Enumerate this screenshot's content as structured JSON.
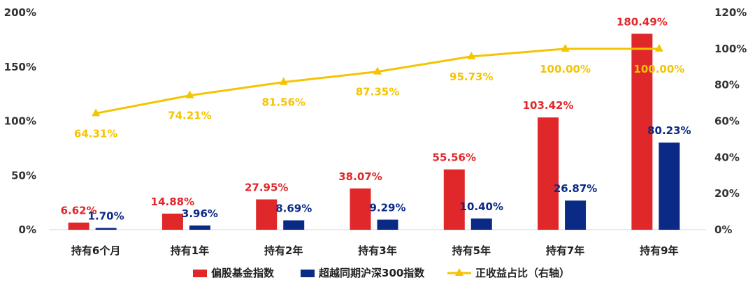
{
  "chart_data": {
    "type": "bar",
    "categories": [
      "持有6个月",
      "持有1年",
      "持有2年",
      "持有3年",
      "持有5年",
      "持有7年",
      "持有9年"
    ],
    "series": [
      {
        "name": "偏股基金指数",
        "type": "bar",
        "axis": "left",
        "color": "#e0282a",
        "values": [
          6.62,
          14.88,
          27.95,
          38.07,
          55.56,
          103.42,
          180.49
        ],
        "labels": [
          "6.62%",
          "14.88%",
          "27.95%",
          "38.07%",
          "55.56%",
          "103.42%",
          "180.49%"
        ]
      },
      {
        "name": "超越同期沪深300指数",
        "type": "bar",
        "axis": "left",
        "color": "#0b2a86",
        "values": [
          1.7,
          3.96,
          8.69,
          9.29,
          10.4,
          26.87,
          80.23
        ],
        "labels": [
          "1.70%",
          "3.96%",
          "8.69%",
          "9.29%",
          "10.40%",
          "26.87%",
          "80.23%"
        ]
      },
      {
        "name": "正收益占比（右轴）",
        "type": "line",
        "axis": "right",
        "color": "#f4c400",
        "values": [
          64.31,
          74.21,
          81.56,
          87.35,
          95.73,
          100.0,
          100.0
        ],
        "labels": [
          "64.31%",
          "74.21%",
          "81.56%",
          "87.35%",
          "95.73%",
          "100.00%",
          "100.00%"
        ]
      }
    ],
    "y_left": {
      "ylim": [
        0,
        200
      ],
      "ticks": [
        "0%",
        "50%",
        "100%",
        "150%",
        "200%"
      ]
    },
    "y_right": {
      "ylim": [
        0,
        120
      ],
      "ticks": [
        "0%",
        "20%",
        "40%",
        "60%",
        "80%",
        "100%",
        "120%"
      ]
    },
    "grid": false,
    "legend_position": "bottom-center"
  }
}
